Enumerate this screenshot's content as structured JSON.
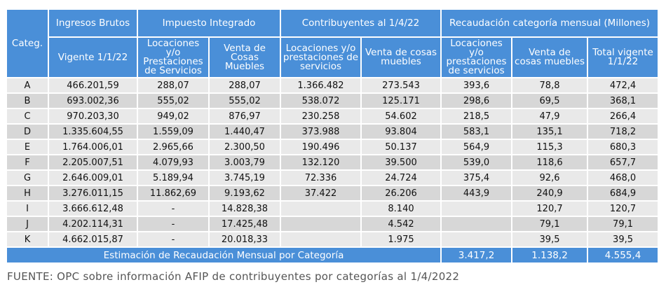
{
  "headers": {
    "categ": "Categ.",
    "ingresos_group": "Ingresos Brutos",
    "impuesto_group": "Impuesto Integrado",
    "contribuyentes_group": "Contribuyentes al 1/4/22",
    "recaudacion_group": "Recaudación categoría mensual (Millones)",
    "vigente": "Vigente 1/1/22",
    "imp_locaciones": "Locaciones y/o Prestaciones de Servicios",
    "imp_venta": "Venta de Cosas Muebles",
    "con_locaciones": "Locaciones y/o prestaciones de servicios",
    "con_venta": "Venta de cosas muebles",
    "rec_locaciones": "Locaciones y/o prestaciones de servicios",
    "rec_venta": "Venta de cosas muebles",
    "rec_total": "Total vigente 1/1/22"
  },
  "rows": [
    {
      "cat": "A",
      "ingresos": "466.201,59",
      "imp_loc": "288,07",
      "imp_venta": "288,07",
      "con_loc": "1.366.482",
      "con_venta": "273.543",
      "rec_loc": "393,6",
      "rec_venta": "78,8",
      "total": "472,4"
    },
    {
      "cat": "B",
      "ingresos": "693.002,36",
      "imp_loc": "555,02",
      "imp_venta": "555,02",
      "con_loc": "538.072",
      "con_venta": "125.171",
      "rec_loc": "298,6",
      "rec_venta": "69,5",
      "total": "368,1"
    },
    {
      "cat": "C",
      "ingresos": "970.203,30",
      "imp_loc": "949,02",
      "imp_venta": "876,97",
      "con_loc": "230.258",
      "con_venta": "54.602",
      "rec_loc": "218,5",
      "rec_venta": "47,9",
      "total": "266,4"
    },
    {
      "cat": "D",
      "ingresos": "1.335.604,55",
      "imp_loc": "1.559,09",
      "imp_venta": "1.440,47",
      "con_loc": "373.988",
      "con_venta": "93.804",
      "rec_loc": "583,1",
      "rec_venta": "135,1",
      "total": "718,2"
    },
    {
      "cat": "E",
      "ingresos": "1.764.006,01",
      "imp_loc": "2.965,66",
      "imp_venta": "2.300,50",
      "con_loc": "190.496",
      "con_venta": "50.137",
      "rec_loc": "564,9",
      "rec_venta": "115,3",
      "total": "680,3"
    },
    {
      "cat": "F",
      "ingresos": "2.205.007,51",
      "imp_loc": "4.079,93",
      "imp_venta": "3.003,79",
      "con_loc": "132.120",
      "con_venta": "39.500",
      "rec_loc": "539,0",
      "rec_venta": "118,6",
      "total": "657,7"
    },
    {
      "cat": "G",
      "ingresos": "2.646.009,01",
      "imp_loc": "5.189,94",
      "imp_venta": "3.745,19",
      "con_loc": "72.336",
      "con_venta": "24.724",
      "rec_loc": "375,4",
      "rec_venta": "92,6",
      "total": "468,0"
    },
    {
      "cat": "H",
      "ingresos": "3.276.011,15",
      "imp_loc": "11.862,69",
      "imp_venta": "9.193,62",
      "con_loc": "37.422",
      "con_venta": "26.206",
      "rec_loc": "443,9",
      "rec_venta": "240,9",
      "total": "684,9"
    },
    {
      "cat": "I",
      "ingresos": "3.666.612,48",
      "imp_loc": "-",
      "imp_venta": "14.828,38",
      "con_loc": "",
      "con_venta": "8.140",
      "rec_loc": "",
      "rec_venta": "120,7",
      "total": "120,7"
    },
    {
      "cat": "J",
      "ingresos": "4.202.114,31",
      "imp_loc": "-",
      "imp_venta": "17.425,48",
      "con_loc": "",
      "con_venta": "4.542",
      "rec_loc": "",
      "rec_venta": "79,1",
      "total": "79,1"
    },
    {
      "cat": "K",
      "ingresos": "4.662.015,87",
      "imp_loc": "-",
      "imp_venta": "20.018,33",
      "con_loc": "",
      "con_venta": "1.975",
      "rec_loc": "",
      "rec_venta": "39,5",
      "total": "39,5"
    }
  ],
  "total_row": {
    "label": "Estimación de Recaudación Mensual por Categoría",
    "rec_loc": "3.417,2",
    "rec_venta": "1.138,2",
    "total": "4.555,4"
  },
  "source": "FUENTE: OPC sobre información AFIP de contribuyentes por categorías al 1/4/2022",
  "colors": {
    "header_blue": "#4a8fd8",
    "row_light": "#e9e9e9",
    "row_dark": "#d7d7d7"
  }
}
